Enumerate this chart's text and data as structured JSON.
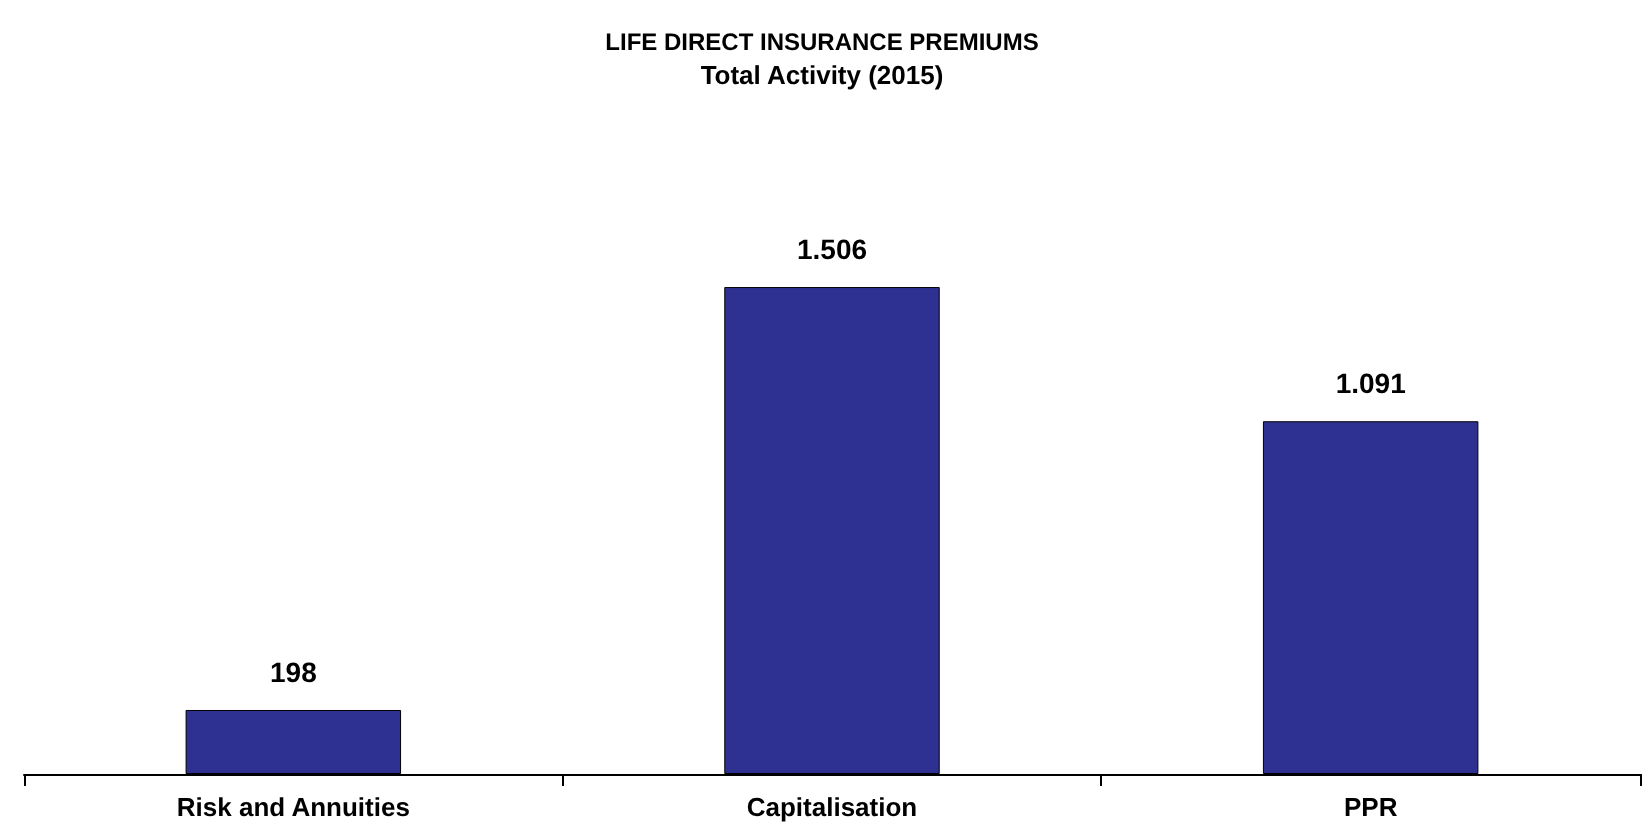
{
  "chart_data": {
    "type": "bar",
    "title": "LIFE DIRECT INSURANCE PREMIUMS",
    "subtitle": "Total Activity (2015)",
    "categories": [
      "Risk and Annuities",
      "Capitalisation",
      "PPR"
    ],
    "values": [
      198,
      1506,
      1091
    ],
    "value_labels": [
      "198",
      "1.506",
      "1.091"
    ],
    "color": "#2e3192"
  }
}
